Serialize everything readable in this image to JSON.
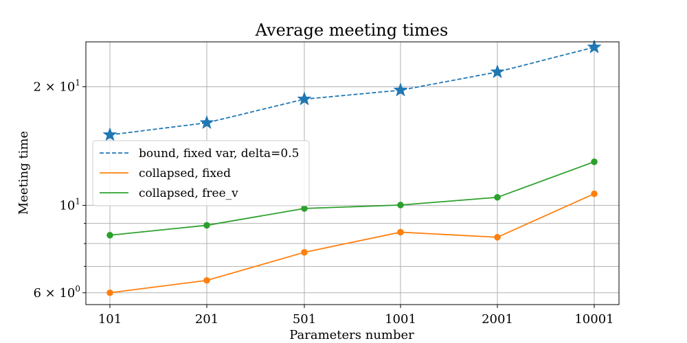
{
  "chart_data": {
    "type": "line",
    "title": "Average meeting times",
    "xlabel": "Parameters number",
    "ylabel": "Meeting time",
    "y_scale": "log",
    "ylim": [
      5.6,
      26
    ],
    "grid": true,
    "legend_position": "center-left",
    "categories": [
      "101",
      "201",
      "501",
      "1001",
      "2001",
      "10001"
    ],
    "y_ticks": [
      {
        "value": 6,
        "label": "6 × 10",
        "exp": "0"
      },
      {
        "value": 10,
        "label": "10",
        "exp": "1"
      },
      {
        "value": 20,
        "label": "2 × 10",
        "exp": "1"
      }
    ],
    "y_minor_ticks": [
      7,
      8,
      9
    ],
    "series": [
      {
        "name": "bound, fixed var, delta=0.5",
        "color": "#1f77b4",
        "linestyle": "dashed",
        "marker": "star",
        "values": [
          15.1,
          16.2,
          18.6,
          19.6,
          21.8,
          25.2
        ]
      },
      {
        "name": "collapsed,  fixed",
        "color": "#ff7f0e",
        "linestyle": "solid",
        "marker": "circle",
        "values": [
          6.0,
          6.45,
          7.6,
          8.55,
          8.3,
          10.7
        ]
      },
      {
        "name": "collapsed,  free_v",
        "color": "#2ca02c",
        "linestyle": "solid",
        "marker": "circle",
        "values": [
          8.4,
          8.9,
          9.82,
          10.02,
          10.48,
          12.9
        ]
      }
    ]
  }
}
